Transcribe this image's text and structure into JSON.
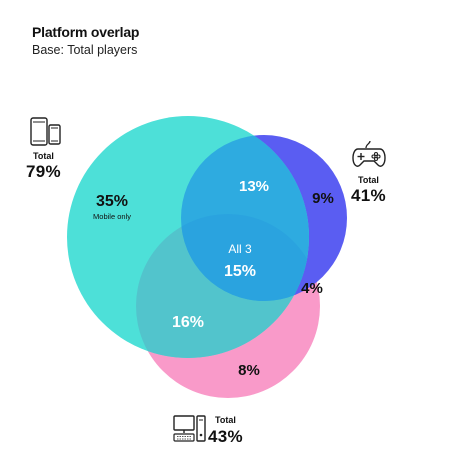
{
  "header": {
    "title": "Platform overlap",
    "subtitle": "Base: Total players"
  },
  "colors": {
    "mobile": "#4de0d8",
    "console": "#5a5df2",
    "pc": "#f99ac9",
    "mobile_console": "#2eabe0",
    "mobile_pc": "#52c4cc",
    "all": "#2aa3df"
  },
  "platforms": {
    "mobile": {
      "icon": "mobile-devices-icon",
      "total_label": "Total",
      "total_value": "79%"
    },
    "console": {
      "icon": "gamepad-icon",
      "total_label": "Total",
      "total_value": "41%"
    },
    "pc": {
      "icon": "desktop-pc-icon",
      "total_label": "Total",
      "total_value": "43%"
    }
  },
  "segments": {
    "mobile_only": {
      "value": "35%",
      "sublabel": "Mobile only"
    },
    "mobile_console": {
      "value": "13%"
    },
    "console_only": {
      "value": "9%"
    },
    "all_three": {
      "value": "15%",
      "sublabel": "All 3"
    },
    "console_pc": {
      "value": "4%"
    },
    "mobile_pc": {
      "value": "16%"
    },
    "pc_only": {
      "value": "8%"
    }
  }
}
